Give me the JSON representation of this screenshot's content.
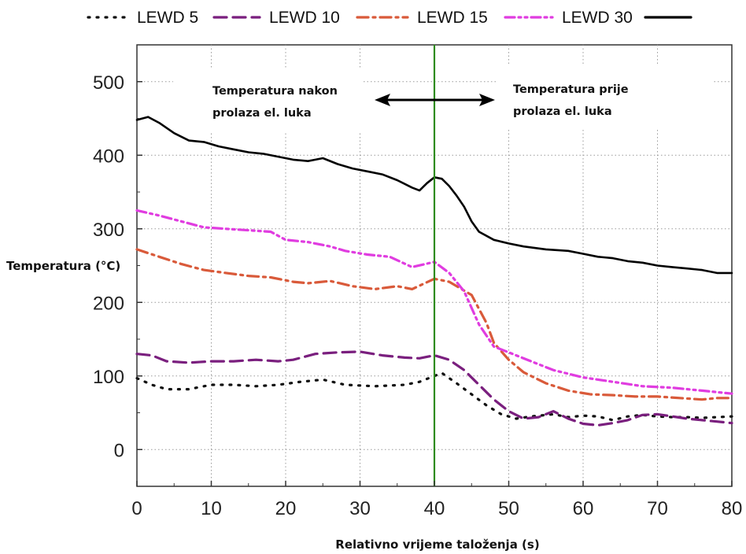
{
  "chart_data": {
    "type": "line",
    "title": "",
    "xlabel": "Relativno vrijeme taloženja (s)",
    "ylabel": "Temperatura (°C)",
    "xlim": [
      0,
      80
    ],
    "ylim": [
      -50,
      550
    ],
    "x_ticks": [
      "0",
      "10",
      "20",
      "30",
      "40",
      "50",
      "60",
      "70",
      "80"
    ],
    "y_ticks": [
      "0",
      "100",
      "200",
      "300",
      "400",
      "500"
    ],
    "grid": true,
    "legend_position": "top",
    "vertical_marker": {
      "x": 40,
      "color": "#2e8b1e"
    },
    "annotations": {
      "left": [
        "Temperatura nakon",
        "prolaza el. luka"
      ],
      "right": [
        "Temperatura prije",
        "prolaza el. luka"
      ]
    },
    "series": [
      {
        "name": "LEWD 5",
        "color": "#111111",
        "dash": "2,9",
        "points": [
          [
            0,
            97
          ],
          [
            2,
            88
          ],
          [
            4,
            82
          ],
          [
            7,
            82
          ],
          [
            10,
            88
          ],
          [
            13,
            88
          ],
          [
            16,
            86
          ],
          [
            19,
            88
          ],
          [
            22,
            92
          ],
          [
            25,
            95
          ],
          [
            28,
            88
          ],
          [
            32,
            86
          ],
          [
            36,
            88
          ],
          [
            38,
            92
          ],
          [
            40,
            100
          ],
          [
            41,
            104
          ],
          [
            43,
            90
          ],
          [
            45,
            75
          ],
          [
            47,
            60
          ],
          [
            49,
            48
          ],
          [
            51,
            42
          ],
          [
            53,
            45
          ],
          [
            56,
            48
          ],
          [
            58,
            44
          ],
          [
            60,
            46
          ],
          [
            62,
            45
          ],
          [
            64,
            40
          ],
          [
            66,
            45
          ],
          [
            68,
            47
          ],
          [
            70,
            45
          ],
          [
            72,
            44
          ],
          [
            74,
            44
          ],
          [
            76,
            43
          ],
          [
            78,
            44
          ],
          [
            80,
            45
          ]
        ]
      },
      {
        "name": "LEWD 10",
        "color": "#7a1f7e",
        "dash": "16,8",
        "points": [
          [
            0,
            130
          ],
          [
            2,
            128
          ],
          [
            4,
            120
          ],
          [
            7,
            118
          ],
          [
            10,
            120
          ],
          [
            13,
            120
          ],
          [
            16,
            122
          ],
          [
            19,
            120
          ],
          [
            21,
            122
          ],
          [
            24,
            130
          ],
          [
            27,
            132
          ],
          [
            30,
            133
          ],
          [
            33,
            128
          ],
          [
            36,
            125
          ],
          [
            38,
            124
          ],
          [
            40,
            128
          ],
          [
            42,
            122
          ],
          [
            44,
            108
          ],
          [
            46,
            88
          ],
          [
            48,
            68
          ],
          [
            50,
            52
          ],
          [
            52,
            42
          ],
          [
            54,
            44
          ],
          [
            56,
            52
          ],
          [
            58,
            42
          ],
          [
            60,
            35
          ],
          [
            62,
            33
          ],
          [
            64,
            36
          ],
          [
            66,
            40
          ],
          [
            68,
            47
          ],
          [
            70,
            48
          ],
          [
            72,
            45
          ],
          [
            74,
            42
          ],
          [
            76,
            40
          ],
          [
            78,
            38
          ],
          [
            80,
            36
          ]
        ]
      },
      {
        "name": "LEWD 15",
        "color": "#d95a3a",
        "dash": "14,6,3,6",
        "points": [
          [
            0,
            272
          ],
          [
            3,
            262
          ],
          [
            6,
            252
          ],
          [
            9,
            244
          ],
          [
            12,
            240
          ],
          [
            15,
            236
          ],
          [
            18,
            234
          ],
          [
            21,
            228
          ],
          [
            23,
            226
          ],
          [
            26,
            229
          ],
          [
            29,
            222
          ],
          [
            32,
            218
          ],
          [
            35,
            222
          ],
          [
            37,
            218
          ],
          [
            40,
            232
          ],
          [
            42,
            228
          ],
          [
            45,
            210
          ],
          [
            47,
            172
          ],
          [
            48,
            145
          ],
          [
            50,
            122
          ],
          [
            52,
            105
          ],
          [
            55,
            90
          ],
          [
            58,
            80
          ],
          [
            61,
            75
          ],
          [
            64,
            74
          ],
          [
            67,
            72
          ],
          [
            70,
            72
          ],
          [
            73,
            70
          ],
          [
            76,
            68
          ],
          [
            78,
            70
          ],
          [
            80,
            70
          ]
        ]
      },
      {
        "name": "LEWD 30",
        "color": "#e03ce0",
        "dash": "12,5,3,5,3,5",
        "points": [
          [
            0,
            325
          ],
          [
            3,
            318
          ],
          [
            6,
            310
          ],
          [
            9,
            302
          ],
          [
            12,
            300
          ],
          [
            15,
            298
          ],
          [
            18,
            296
          ],
          [
            20,
            285
          ],
          [
            23,
            282
          ],
          [
            26,
            276
          ],
          [
            28,
            270
          ],
          [
            31,
            265
          ],
          [
            34,
            262
          ],
          [
            37,
            248
          ],
          [
            40,
            255
          ],
          [
            42,
            240
          ],
          [
            44,
            215
          ],
          [
            46,
            170
          ],
          [
            48,
            140
          ],
          [
            50,
            132
          ],
          [
            53,
            120
          ],
          [
            56,
            108
          ],
          [
            60,
            98
          ],
          [
            64,
            92
          ],
          [
            68,
            86
          ],
          [
            72,
            84
          ],
          [
            76,
            80
          ],
          [
            80,
            76
          ]
        ]
      },
      {
        "name": "LEWD 30",
        "color": "#000000",
        "dash": "",
        "points": [
          [
            0,
            448
          ],
          [
            1.5,
            452
          ],
          [
            3,
            444
          ],
          [
            5,
            430
          ],
          [
            7,
            420
          ],
          [
            9,
            418
          ],
          [
            11,
            412
          ],
          [
            13,
            408
          ],
          [
            15,
            404
          ],
          [
            17,
            402
          ],
          [
            19,
            398
          ],
          [
            21,
            394
          ],
          [
            23,
            392
          ],
          [
            24,
            394
          ],
          [
            25,
            396
          ],
          [
            27,
            388
          ],
          [
            29,
            382
          ],
          [
            31,
            378
          ],
          [
            33,
            374
          ],
          [
            35,
            366
          ],
          [
            37,
            356
          ],
          [
            38,
            352
          ],
          [
            39,
            362
          ],
          [
            40,
            370
          ],
          [
            41,
            368
          ],
          [
            42,
            358
          ],
          [
            43,
            345
          ],
          [
            44,
            330
          ],
          [
            45,
            310
          ],
          [
            46,
            296
          ],
          [
            48,
            285
          ],
          [
            50,
            280
          ],
          [
            52,
            276
          ],
          [
            55,
            272
          ],
          [
            58,
            270
          ],
          [
            60,
            266
          ],
          [
            62,
            262
          ],
          [
            64,
            260
          ],
          [
            66,
            256
          ],
          [
            68,
            254
          ],
          [
            70,
            250
          ],
          [
            72,
            248
          ],
          [
            74,
            246
          ],
          [
            76,
            244
          ],
          [
            78,
            240
          ],
          [
            80,
            240
          ]
        ]
      }
    ]
  }
}
